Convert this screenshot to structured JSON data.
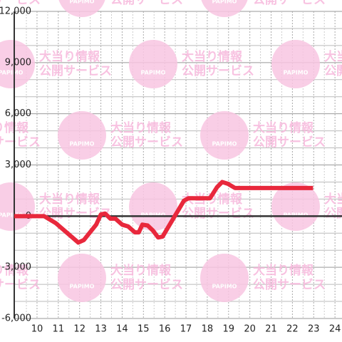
{
  "chart_data": {
    "type": "line",
    "watermark": {
      "line1": "大当り情報",
      "line2": "公開サービス",
      "logo": "PAPIMO"
    },
    "x": [
      8.93,
      10.33,
      10.87,
      11.94,
      12.2,
      12.78,
      13.0,
      13.2,
      13.45,
      13.68,
      14.0,
      14.28,
      14.6,
      14.78,
      14.95,
      15.2,
      15.45,
      15.69,
      15.9,
      16.9,
      17.12,
      18.13,
      18.46,
      18.7,
      18.96,
      19.3,
      22.97
    ],
    "series": [
      {
        "color": "#e8283c",
        "values": [
          0,
          0,
          -400,
          -1550,
          -1400,
          -500,
          100,
          150,
          -150,
          -150,
          -500,
          -600,
          -950,
          -950,
          -500,
          -550,
          -850,
          -1250,
          -1200,
          900,
          1050,
          1050,
          1700,
          2000,
          1900,
          1650,
          1650
        ]
      }
    ],
    "xlim": [
      8.93,
      24.33
    ],
    "xticks": [
      10,
      11,
      12,
      13,
      14,
      15,
      16,
      17,
      18,
      19,
      20,
      21,
      22,
      23,
      24
    ],
    "x_minor_ticks": [
      9.5,
      10.5,
      11.5,
      12.5,
      13.5,
      14.5,
      15.5,
      16.5,
      17.5,
      18.5,
      19.5,
      20.5,
      21.5,
      22.5,
      23.5
    ],
    "ylim": [
      -6000,
      12000
    ],
    "yticks": [
      {
        "value": -6000,
        "label": "-6,000"
      },
      {
        "value": -3000,
        "label": "-3,000"
      },
      0,
      {
        "value": 3000,
        "label": "3,000"
      },
      {
        "value": 6000,
        "label": "6,000"
      },
      {
        "value": 9000,
        "label": "9,000"
      },
      {
        "value": 12000,
        "label": "12,000"
      }
    ],
    "y_minor_ticks": [
      -5000,
      -4000,
      -2000,
      -1000,
      1000,
      2000,
      4000,
      5000,
      7000,
      8000,
      10000,
      11000
    ],
    "grid": true
  }
}
